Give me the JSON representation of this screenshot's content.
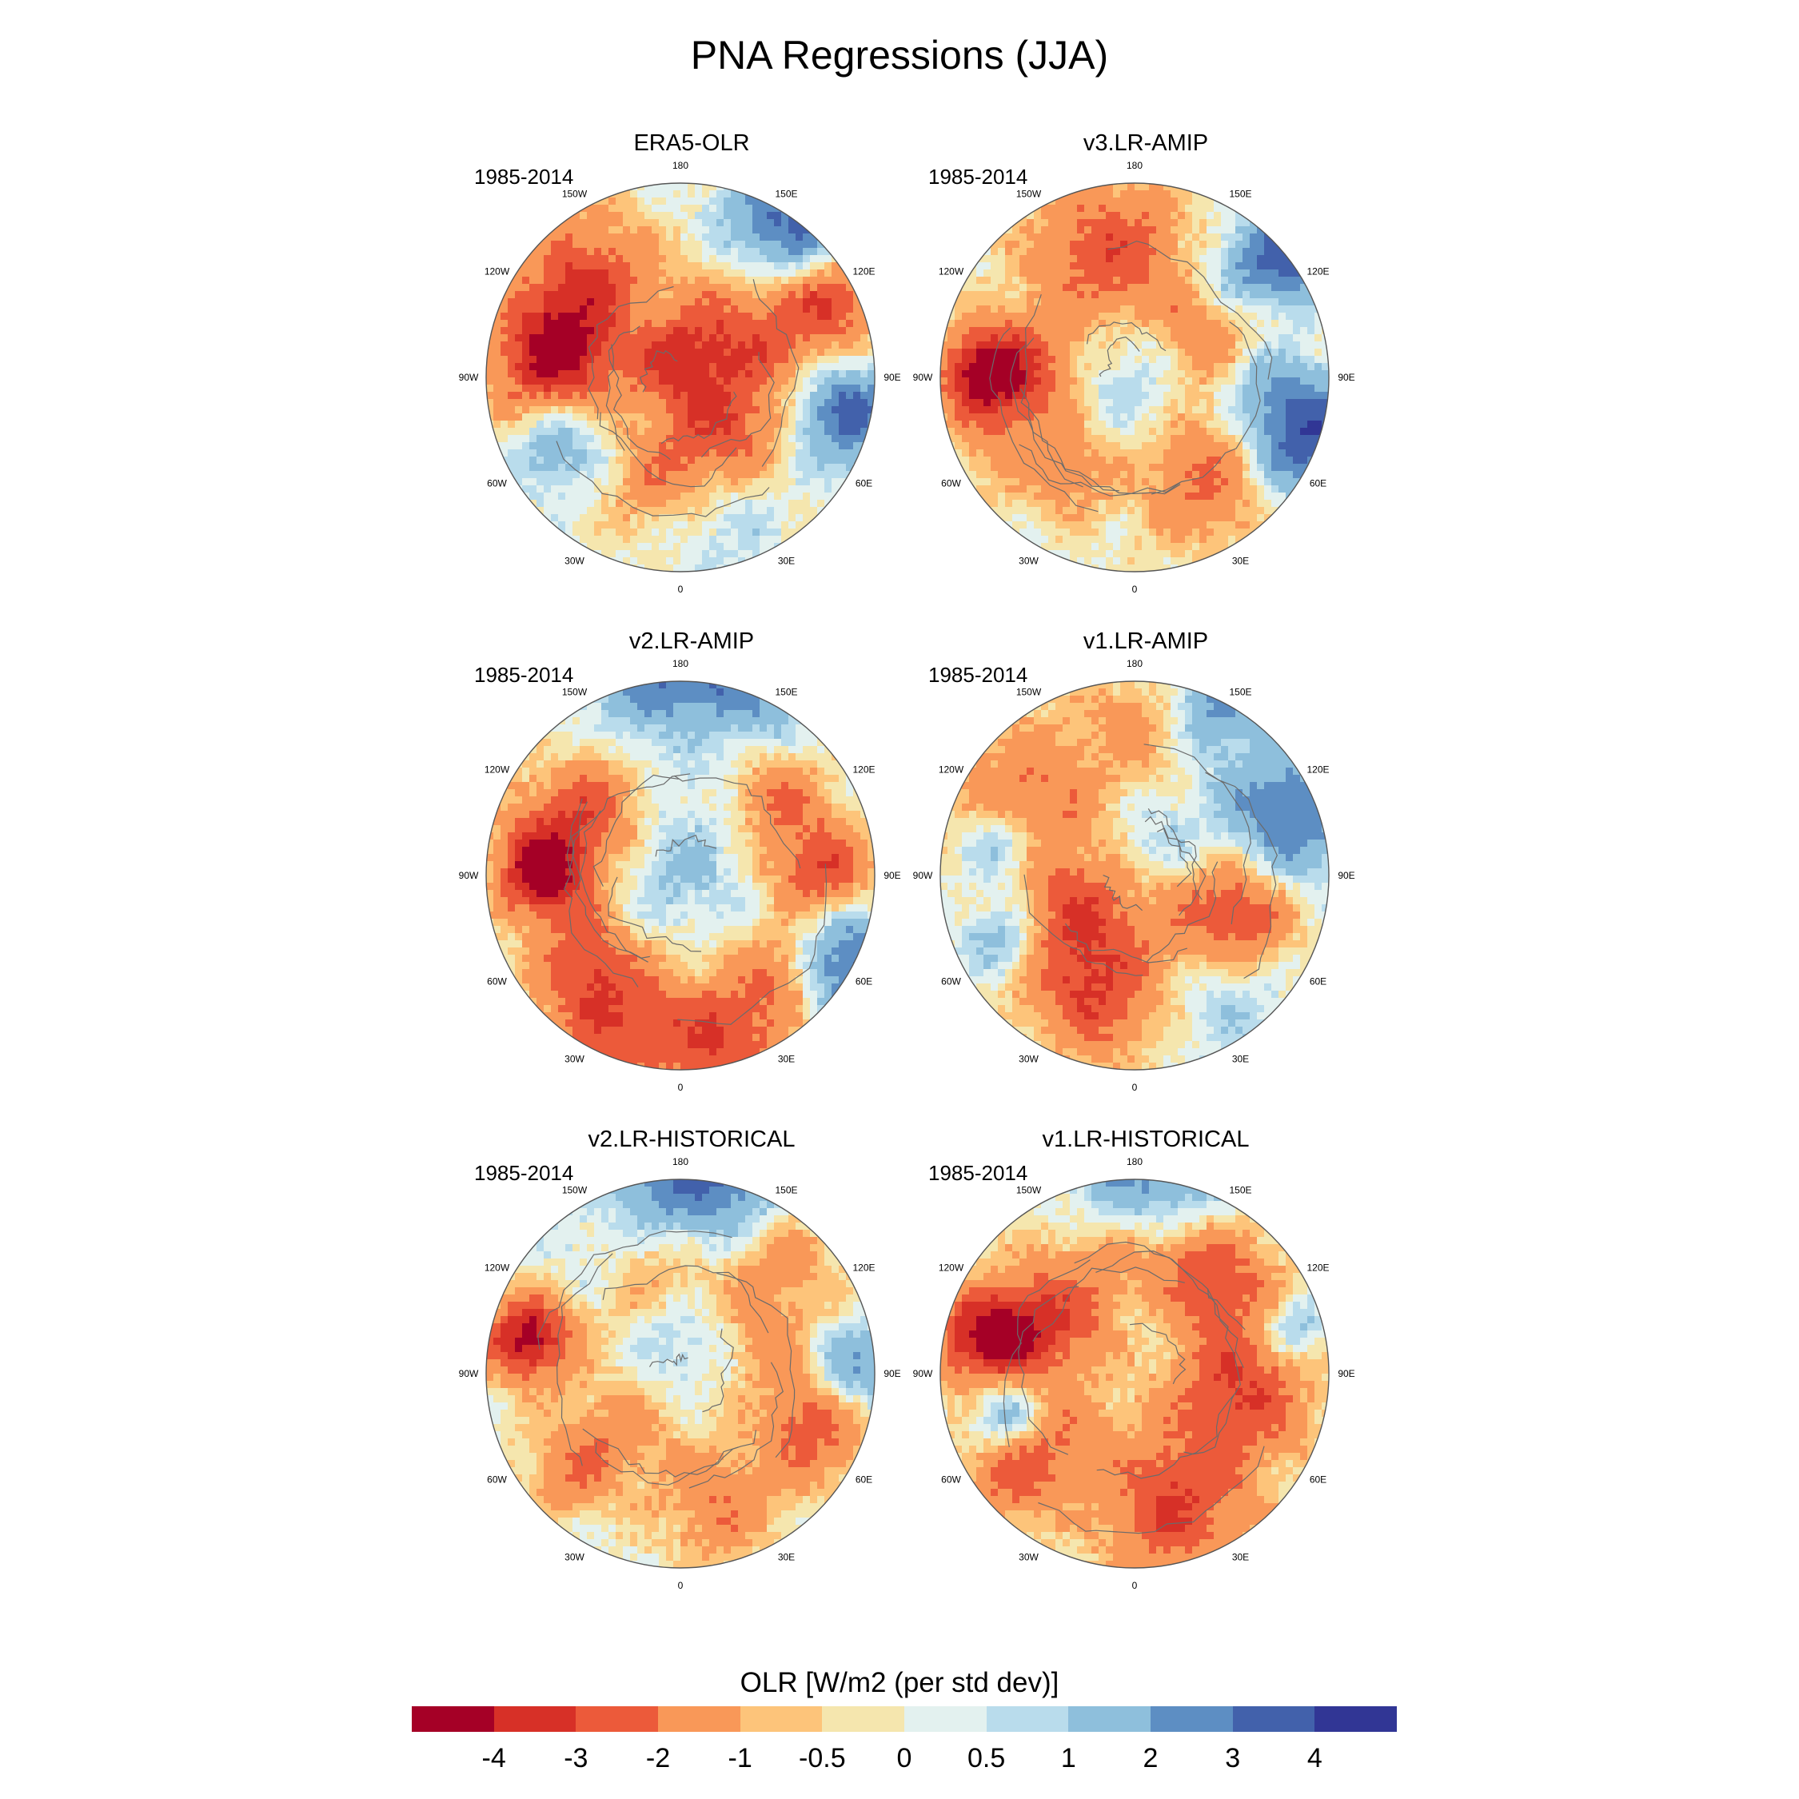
{
  "title": "PNA Regressions (JJA)",
  "panels": [
    {
      "title": "ERA5-OLR",
      "period": "1985-2014",
      "seed": 11,
      "pattern": "era5"
    },
    {
      "title": "v3.LR-AMIP",
      "period": "1985-2014",
      "seed": 23,
      "pattern": "v3amip"
    },
    {
      "title": "v2.LR-AMIP",
      "period": "1985-2014",
      "seed": 37,
      "pattern": "v2amip"
    },
    {
      "title": "v1.LR-AMIP",
      "period": "1985-2014",
      "seed": 41,
      "pattern": "v1amip"
    },
    {
      "title": "v2.LR-HISTORICAL",
      "period": "1985-2014",
      "seed": 53,
      "pattern": "v2hist"
    },
    {
      "title": "v1.LR-HISTORICAL",
      "period": "1985-2014",
      "seed": 67,
      "pattern": "v1hist"
    }
  ],
  "longitude_labels": [
    "180",
    "150E",
    "120E",
    "90E",
    "60E",
    "30E",
    "0",
    "30W",
    "60W",
    "90W",
    "120W",
    "150W"
  ],
  "colorbar": {
    "title": "OLR [W/m2 (per std dev)]",
    "tick_labels": [
      "-4",
      "-3",
      "-2",
      "-1",
      "-0.5",
      "0",
      "0.5",
      "1",
      "2",
      "3",
      "4"
    ],
    "colors": [
      "#a50026",
      "#d73027",
      "#ec5a3a",
      "#f99858",
      "#fdc47a",
      "#f5e6ae",
      "#e3f1ef",
      "#b9dcec",
      "#8ebfdc",
      "#5d8ec3",
      "#4261ab",
      "#313695"
    ]
  }
}
